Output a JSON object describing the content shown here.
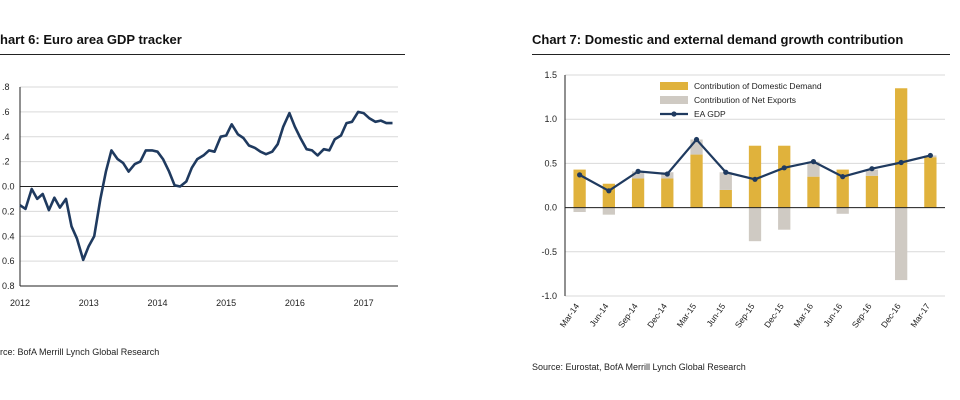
{
  "chart_data": [
    {
      "type": "line",
      "title": "hart 6: Euro area GDP tracker",
      "source": "rce: BofA Merrill Lynch Global Research",
      "ylim": [
        -0.8,
        0.8
      ],
      "yticks": [
        ".8",
        ".6",
        ".4",
        ".2",
        "0.0",
        "0.2",
        "0.4",
        "0.6",
        "0.8"
      ],
      "ytick_values": [
        0.8,
        0.6,
        0.4,
        0.2,
        0.0,
        -0.2,
        -0.4,
        -0.6,
        -0.8
      ],
      "xlim": [
        2012.0,
        2017.5
      ],
      "xticks": [
        "2012",
        "2013",
        "2014",
        "2015",
        "2016",
        "2017"
      ],
      "xtick_values": [
        2012,
        2013,
        2014,
        2015,
        2016,
        2017
      ],
      "grid": true,
      "line_color": "#1f3a5f",
      "series": [
        {
          "x": [
            2012.0,
            2012.08,
            2012.17,
            2012.25,
            2012.33,
            2012.42,
            2012.5,
            2012.58,
            2012.67,
            2012.75,
            2012.83,
            2012.92,
            2013.0,
            2013.08,
            2013.17,
            2013.25,
            2013.33,
            2013.42,
            2013.5,
            2013.58,
            2013.67,
            2013.75,
            2013.83,
            2013.92,
            2014.0,
            2014.08,
            2014.17,
            2014.25,
            2014.33,
            2014.42,
            2014.5,
            2014.58,
            2014.67,
            2014.75,
            2014.83,
            2014.92,
            2015.0,
            2015.08,
            2015.17,
            2015.25,
            2015.33,
            2015.42,
            2015.5,
            2015.58,
            2015.67,
            2015.75,
            2015.83,
            2015.92,
            2016.0,
            2016.08,
            2016.17,
            2016.25,
            2016.33,
            2016.42,
            2016.5,
            2016.58,
            2016.67,
            2016.75,
            2016.83,
            2016.92,
            2017.0,
            2017.08,
            2017.17,
            2017.25,
            2017.33,
            2017.42
          ],
          "values": [
            -0.15,
            -0.18,
            -0.02,
            -0.1,
            -0.06,
            -0.19,
            -0.09,
            -0.17,
            -0.1,
            -0.32,
            -0.42,
            -0.59,
            -0.48,
            -0.4,
            -0.1,
            0.12,
            0.29,
            0.22,
            0.19,
            0.12,
            0.18,
            0.2,
            0.29,
            0.29,
            0.28,
            0.22,
            0.12,
            0.01,
            0.0,
            0.04,
            0.15,
            0.22,
            0.25,
            0.29,
            0.28,
            0.4,
            0.41,
            0.5,
            0.42,
            0.39,
            0.33,
            0.31,
            0.28,
            0.26,
            0.28,
            0.34,
            0.48,
            0.59,
            0.48,
            0.39,
            0.3,
            0.29,
            0.25,
            0.3,
            0.29,
            0.38,
            0.41,
            0.51,
            0.52,
            0.6,
            0.59,
            0.55,
            0.52,
            0.53,
            0.51,
            0.51
          ]
        }
      ]
    },
    {
      "type": "bar",
      "title": "Chart 7: Domestic and external demand growth contribution",
      "source": "Source: Eurostat, BofA Merrill Lynch Global Research",
      "ylim": [
        -1.0,
        1.5
      ],
      "yticks": [
        "1.5",
        "1.0",
        "0.5",
        "0.0",
        "-0.5",
        "-1.0"
      ],
      "ytick_values": [
        1.5,
        1.0,
        0.5,
        0.0,
        -0.5,
        -1.0
      ],
      "categories": [
        "Mar-14",
        "Jun-14",
        "Sep-14",
        "Dec-14",
        "Mar-15",
        "Jun-15",
        "Sep-15",
        "Dec-15",
        "Mar-16",
        "Jun-16",
        "Sep-16",
        "Dec-16",
        "Mar-17"
      ],
      "grid": true,
      "legend_position": "top-left",
      "series": [
        {
          "name": "Contribution of Domestic Demand",
          "kind": "bar",
          "color": "#e0b23c",
          "values": [
            0.43,
            0.27,
            0.33,
            0.33,
            0.6,
            0.2,
            0.7,
            0.7,
            0.35,
            0.43,
            0.36,
            1.35,
            0.57
          ]
        },
        {
          "name": "Contribution of Net Exports",
          "kind": "bar",
          "color": "#cfcac3",
          "values": [
            -0.05,
            -0.08,
            0.08,
            0.07,
            0.17,
            0.2,
            -0.38,
            -0.25,
            0.17,
            -0.07,
            0.07,
            -0.82,
            0.02
          ]
        },
        {
          "name": "EA GDP",
          "kind": "line",
          "color": "#1f3a5f",
          "values": [
            0.37,
            0.19,
            0.41,
            0.38,
            0.77,
            0.4,
            0.32,
            0.45,
            0.52,
            0.35,
            0.44,
            0.51,
            0.59
          ]
        }
      ]
    }
  ]
}
